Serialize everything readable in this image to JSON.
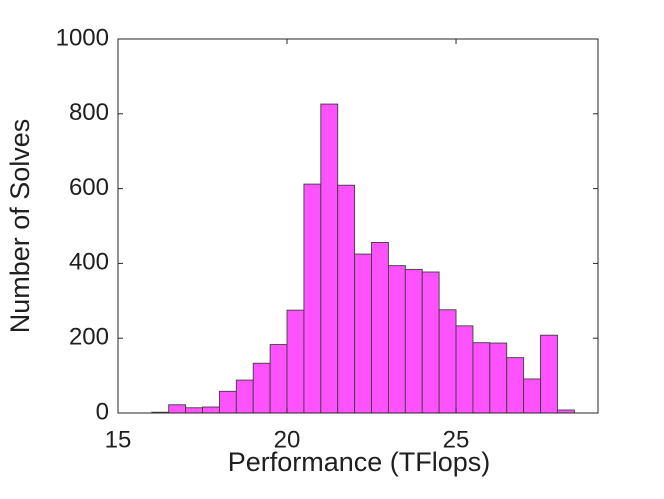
{
  "chart_data": {
    "type": "bar",
    "title": "",
    "xlabel": "Performance (TFlops)",
    "ylabel": "Number of Solves",
    "xlim": [
      15,
      29.2
    ],
    "ylim": [
      0,
      1000
    ],
    "xticks": [
      15,
      20,
      25
    ],
    "yticks": [
      0,
      200,
      400,
      600,
      800,
      1000
    ],
    "grid": false,
    "bar_color": "#ff52ff",
    "edge_color": "#3d3d3d",
    "bins": [
      {
        "x0": 16.0,
        "x1": 16.5,
        "value": 2
      },
      {
        "x0": 16.5,
        "x1": 17.0,
        "value": 22
      },
      {
        "x0": 17.0,
        "x1": 17.5,
        "value": 14
      },
      {
        "x0": 17.5,
        "x1": 18.0,
        "value": 16
      },
      {
        "x0": 18.0,
        "x1": 18.5,
        "value": 58
      },
      {
        "x0": 18.5,
        "x1": 19.0,
        "value": 88
      },
      {
        "x0": 19.0,
        "x1": 19.5,
        "value": 133
      },
      {
        "x0": 19.5,
        "x1": 20.0,
        "value": 183
      },
      {
        "x0": 20.0,
        "x1": 20.5,
        "value": 275
      },
      {
        "x0": 20.5,
        "x1": 21.0,
        "value": 612
      },
      {
        "x0": 21.0,
        "x1": 21.5,
        "value": 826
      },
      {
        "x0": 21.5,
        "x1": 22.0,
        "value": 609
      },
      {
        "x0": 22.0,
        "x1": 22.5,
        "value": 425
      },
      {
        "x0": 22.5,
        "x1": 23.0,
        "value": 456
      },
      {
        "x0": 23.0,
        "x1": 23.5,
        "value": 394
      },
      {
        "x0": 23.5,
        "x1": 24.0,
        "value": 384
      },
      {
        "x0": 24.0,
        "x1": 24.5,
        "value": 377
      },
      {
        "x0": 24.5,
        "x1": 25.0,
        "value": 276
      },
      {
        "x0": 25.0,
        "x1": 25.5,
        "value": 233
      },
      {
        "x0": 25.5,
        "x1": 26.0,
        "value": 188
      },
      {
        "x0": 26.0,
        "x1": 26.5,
        "value": 187
      },
      {
        "x0": 26.5,
        "x1": 27.0,
        "value": 148
      },
      {
        "x0": 27.0,
        "x1": 27.5,
        "value": 91
      },
      {
        "x0": 27.5,
        "x1": 28.0,
        "value": 208
      },
      {
        "x0": 28.0,
        "x1": 28.5,
        "value": 8
      }
    ]
  }
}
